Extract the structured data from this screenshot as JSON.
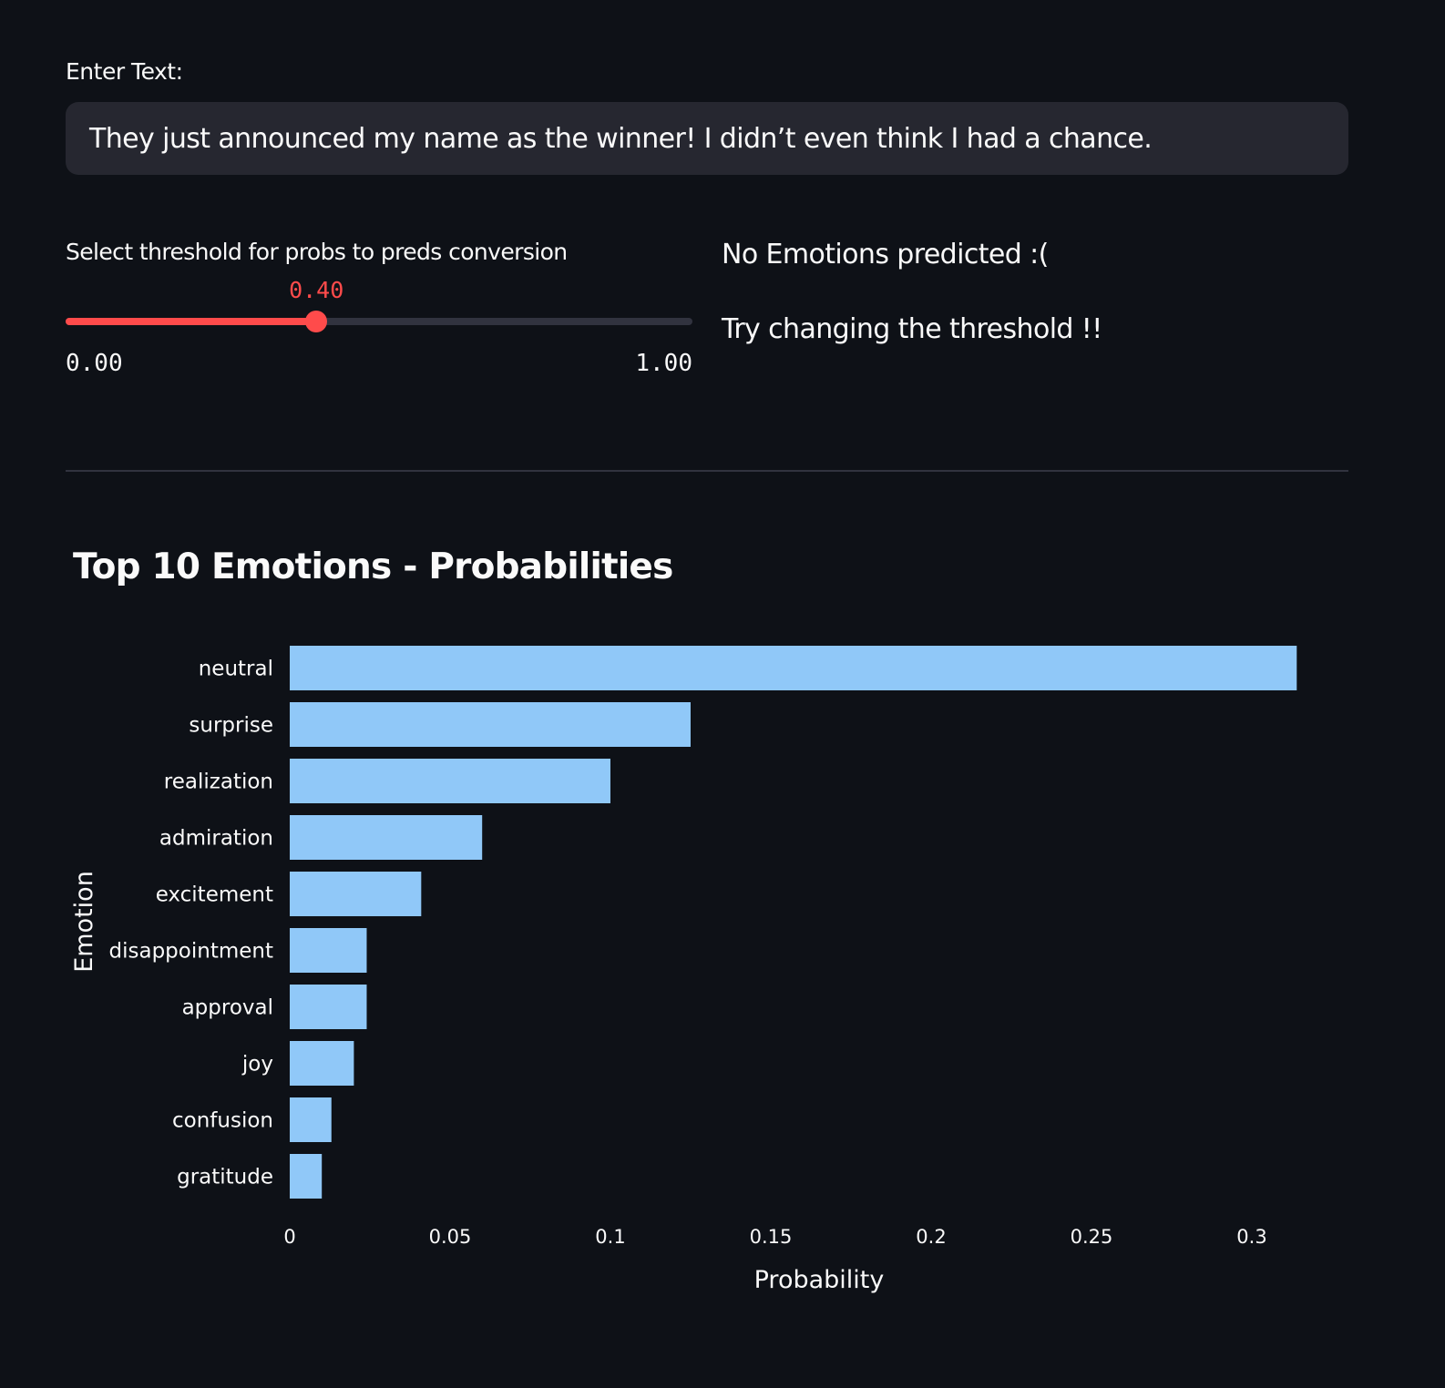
{
  "input": {
    "label": "Enter Text:",
    "value": "They just announced my name as the winner! I didn’t even think I had a chance."
  },
  "slider": {
    "label": "Select threshold for probs to preds conversion",
    "value": 0.4,
    "value_text": "0.40",
    "min_text": "0.00",
    "max_text": "1.00",
    "accent_color": "#ff4b4b"
  },
  "result": {
    "line1": "No Emotions predicted :(",
    "line2": "Try changing the threshold !!"
  },
  "chart_data": {
    "type": "bar",
    "orientation": "horizontal",
    "title": "Top 10 Emotions - Probabilities",
    "xlabel": "Probability",
    "ylabel": "Emotion",
    "categories": [
      "neutral",
      "surprise",
      "realization",
      "admiration",
      "excitement",
      "disappointment",
      "approval",
      "joy",
      "confusion",
      "gratitude"
    ],
    "values": [
      0.314,
      0.125,
      0.1,
      0.06,
      0.041,
      0.024,
      0.024,
      0.02,
      0.013,
      0.01
    ],
    "xticks": [
      "0",
      "0.05",
      "0.1",
      "0.15",
      "0.2",
      "0.25",
      "0.3"
    ],
    "tick_values": [
      0,
      0.05,
      0.1,
      0.15,
      0.2,
      0.25,
      0.3
    ],
    "bar_color": "#90c8f8",
    "grid": false
  }
}
